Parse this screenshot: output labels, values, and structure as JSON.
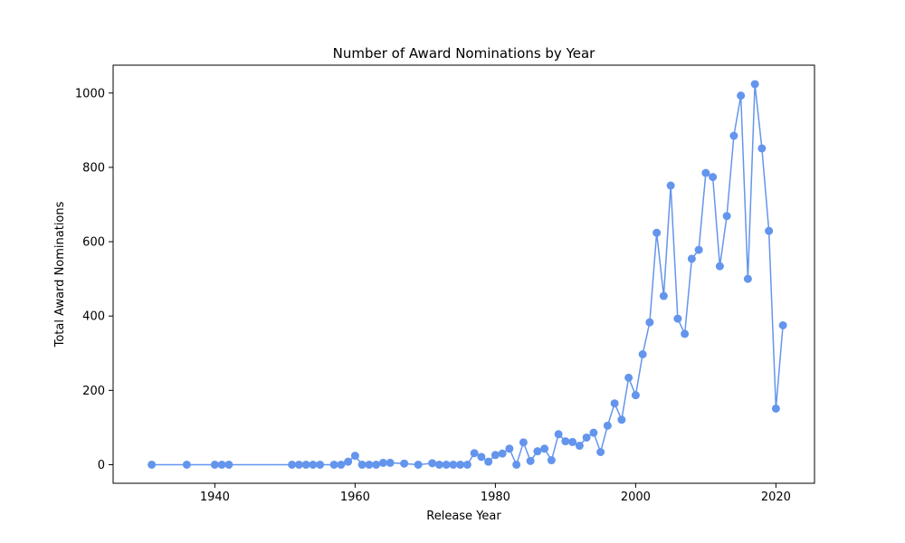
{
  "chart_data": {
    "type": "line",
    "title": "Number of Award Nominations by Year",
    "xlabel": "Release Year",
    "ylabel": "Total Award Nominations",
    "xlim": [
      1925.5,
      2025.5
    ],
    "ylim": [
      -50,
      1075
    ],
    "xticks": [
      1940,
      1960,
      1980,
      2000,
      2020
    ],
    "yticks": [
      0,
      200,
      400,
      600,
      800,
      1000
    ],
    "grid": false,
    "legend": "none",
    "marker": "circle",
    "series": [
      {
        "color": "#6495ed",
        "x": [
          1931,
          1936,
          1940,
          1941,
          1942,
          1951,
          1952,
          1953,
          1954,
          1955,
          1957,
          1958,
          1959,
          1960,
          1961,
          1962,
          1963,
          1964,
          1965,
          1967,
          1969,
          1971,
          1972,
          1973,
          1974,
          1975,
          1976,
          1977,
          1978,
          1979,
          1980,
          1981,
          1982,
          1983,
          1984,
          1985,
          1986,
          1987,
          1988,
          1989,
          1990,
          1991,
          1992,
          1993,
          1994,
          1995,
          1996,
          1997,
          1998,
          1999,
          2000,
          2001,
          2002,
          2003,
          2004,
          2005,
          2006,
          2007,
          2008,
          2009,
          2010,
          2011,
          2012,
          2013,
          2014,
          2015,
          2016,
          2017,
          2018,
          2019,
          2020,
          2021
        ],
        "y": [
          0,
          0,
          0,
          0,
          0,
          0,
          0,
          0,
          0,
          0,
          0,
          0,
          8,
          24,
          0,
          0,
          0,
          5,
          5,
          3,
          0,
          4,
          0,
          0,
          0,
          0,
          0,
          31,
          21,
          8,
          26,
          30,
          43,
          0,
          60,
          10,
          36,
          43,
          12,
          82,
          63,
          61,
          51,
          73,
          86,
          34,
          105,
          165,
          121,
          234,
          187,
          297,
          383,
          624,
          454,
          751,
          393,
          352,
          554,
          578,
          785,
          774,
          534,
          669,
          885,
          993,
          500,
          1024,
          851,
          629,
          151,
          375
        ]
      }
    ]
  }
}
